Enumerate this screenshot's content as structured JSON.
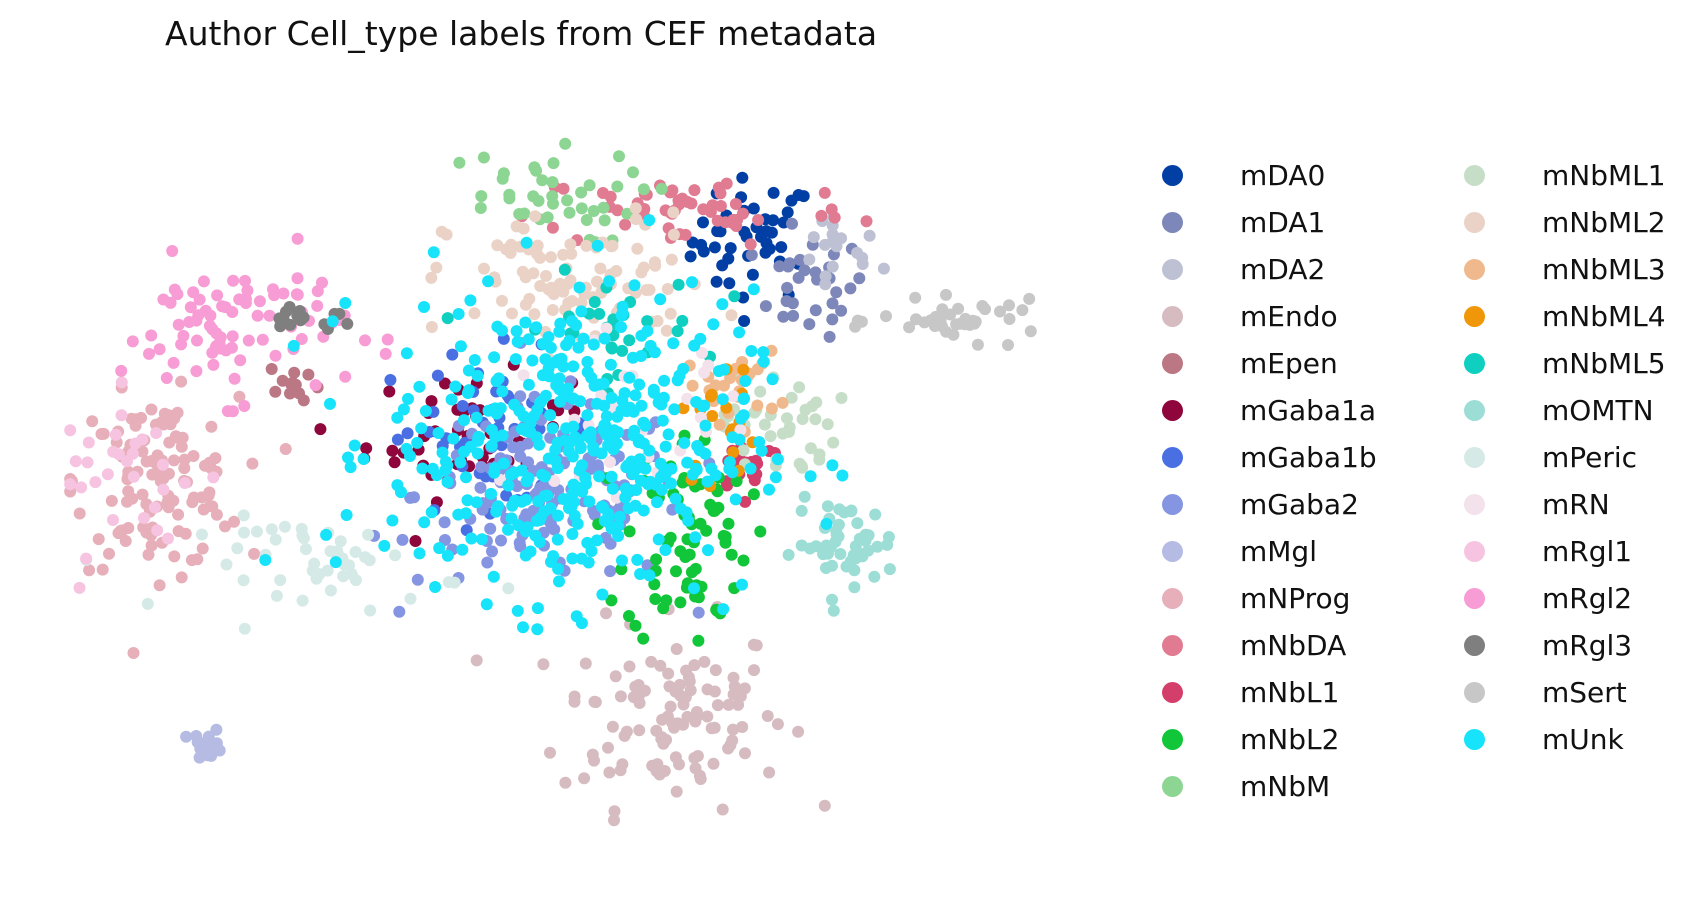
{
  "chart_data": {
    "type": "scatter",
    "title": "Author Cell_type labels from CEF metadata",
    "xlabel": "",
    "ylabel": "",
    "axes_visible": false,
    "grid": false,
    "legend_position": "right (two columns)",
    "xlim": [
      -10,
      10
    ],
    "ylim": [
      -10,
      10
    ],
    "series": [
      {
        "name": "mDA0",
        "color": "#023fa5",
        "center": [
          3.6,
          6.1
        ],
        "spread": [
          0.6,
          0.8
        ],
        "n": 45
      },
      {
        "name": "mDA1",
        "color": "#7d87b9",
        "center": [
          4.7,
          4.9
        ],
        "spread": [
          0.55,
          0.65
        ],
        "n": 30
      },
      {
        "name": "mDA2",
        "color": "#bec1d4",
        "center": [
          5.2,
          5.7
        ],
        "spread": [
          0.45,
          0.6
        ],
        "n": 18
      },
      {
        "name": "mEndo",
        "color": "#d6bcc0",
        "center": [
          2.0,
          -6.2
        ],
        "spread": [
          1.1,
          1.2
        ],
        "n": 110
      },
      {
        "name": "mEpen",
        "color": "#bb7784",
        "center": [
          -5.4,
          2.4
        ],
        "spread": [
          0.25,
          0.3
        ],
        "n": 12
      },
      {
        "name": "mGaba1a",
        "color": "#8e063b",
        "center": [
          -2.0,
          1.0
        ],
        "spread": [
          1.0,
          0.8
        ],
        "n": 50
      },
      {
        "name": "mGaba1b",
        "color": "#4a6fe3",
        "center": [
          -1.6,
          1.2
        ],
        "spread": [
          1.1,
          1.0
        ],
        "n": 45
      },
      {
        "name": "mGaba2",
        "color": "#8595e1",
        "center": [
          -0.4,
          -0.5
        ],
        "spread": [
          1.3,
          1.2
        ],
        "n": 150
      },
      {
        "name": "mMgl",
        "color": "#b5bbe3",
        "center": [
          -7.1,
          -7.0
        ],
        "spread": [
          0.15,
          0.2
        ],
        "n": 18
      },
      {
        "name": "mNProg",
        "color": "#e6afb9",
        "center": [
          -8.1,
          -0.2
        ],
        "spread": [
          0.8,
          1.1
        ],
        "n": 120
      },
      {
        "name": "mNbDA",
        "color": "#e07b91",
        "center": [
          2.4,
          6.9
        ],
        "spread": [
          1.6,
          0.5
        ],
        "n": 55
      },
      {
        "name": "mNbL1",
        "color": "#d33f6a",
        "center": [
          3.5,
          0.3
        ],
        "spread": [
          0.35,
          0.35
        ],
        "n": 20
      },
      {
        "name": "mNbL2",
        "color": "#11c638",
        "center": [
          2.3,
          -1.6
        ],
        "spread": [
          0.6,
          1.4
        ],
        "n": 75
      },
      {
        "name": "mNbM",
        "color": "#8dd593",
        "center": [
          -0.8,
          7.2
        ],
        "spread": [
          1.1,
          0.6
        ],
        "n": 40
      },
      {
        "name": "mNbML1",
        "color": "#c6dec7",
        "center": [
          4.1,
          1.3
        ],
        "spread": [
          0.55,
          0.7
        ],
        "n": 38
      },
      {
        "name": "mNbML2",
        "color": "#ead3c6",
        "center": [
          0.2,
          5.0
        ],
        "spread": [
          1.3,
          0.9
        ],
        "n": 95
      },
      {
        "name": "mNbML3",
        "color": "#f0b98d",
        "center": [
          3.2,
          2.3
        ],
        "spread": [
          0.45,
          0.45
        ],
        "n": 24
      },
      {
        "name": "mNbML4",
        "color": "#ef9708",
        "center": [
          3.0,
          1.4
        ],
        "spread": [
          0.4,
          0.8
        ],
        "n": 18
      },
      {
        "name": "mNbML5",
        "color": "#0fcfc0",
        "center": [
          0.6,
          3.8
        ],
        "spread": [
          1.0,
          0.7
        ],
        "n": 30
      },
      {
        "name": "mOMTN",
        "color": "#9cded6",
        "center": [
          5.4,
          -1.8
        ],
        "spread": [
          0.5,
          0.55
        ],
        "n": 50
      },
      {
        "name": "mPeric",
        "color": "#d5eae7",
        "center": [
          -4.6,
          -2.3
        ],
        "spread": [
          1.3,
          0.6
        ],
        "n": 48
      },
      {
        "name": "mRN",
        "color": "#f3e1eb",
        "center": [
          1.2,
          1.6
        ],
        "spread": [
          1.2,
          1.0
        ],
        "n": 28
      },
      {
        "name": "mRgl1",
        "color": "#f6c4e1",
        "center": [
          -8.6,
          0.0
        ],
        "spread": [
          0.8,
          1.0
        ],
        "n": 30
      },
      {
        "name": "mRgl2",
        "color": "#f79cd4",
        "center": [
          -6.6,
          3.8
        ],
        "spread": [
          1.1,
          0.9
        ],
        "n": 85
      },
      {
        "name": "mRgl3",
        "color": "#7f7f7f",
        "center": [
          -5.2,
          4.1
        ],
        "spread": [
          0.5,
          0.25
        ],
        "n": 15
      },
      {
        "name": "mSert",
        "color": "#c7c7c7",
        "center": [
          7.7,
          4.0
        ],
        "spread": [
          0.8,
          0.25
        ],
        "n": 38
      },
      {
        "name": "mUnk",
        "color": "#17e3fa",
        "center": [
          0.0,
          0.8
        ],
        "spread": [
          1.8,
          2.0
        ],
        "n": 420
      }
    ]
  }
}
